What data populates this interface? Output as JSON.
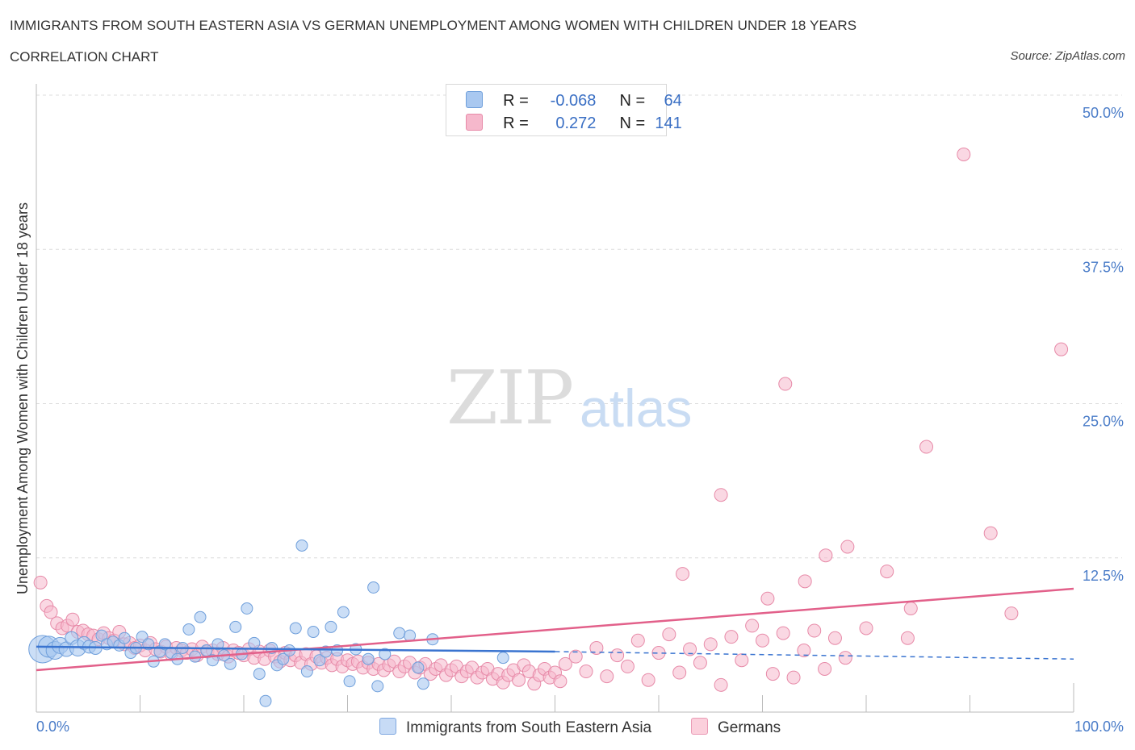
{
  "title": "IMMIGRANTS FROM SOUTH EASTERN ASIA VS GERMAN UNEMPLOYMENT AMONG WOMEN WITH CHILDREN UNDER 18 YEARS",
  "subtitle": "CORRELATION CHART",
  "source": "Source: ZipAtlas.com",
  "watermark": {
    "zip": "ZIP",
    "atlas": "atlas"
  },
  "legend": {
    "rows": [
      {
        "r_label": "R =",
        "r_value": "-0.068",
        "n_label": "N =",
        "n_value": "64",
        "color": "#a9c8f0"
      },
      {
        "r_label": "R =",
        "r_value": " 0.272",
        "n_label": "N =",
        "n_value": "141",
        "color": "#f6b8cc"
      }
    ]
  },
  "bottom_legend": [
    {
      "label": "Immigrants from South Eastern Asia",
      "color": "#a9c8f0"
    },
    {
      "label": "Germans",
      "color": "#f6b8cc"
    }
  ],
  "colors": {
    "blue_fill": "#a9c8f0",
    "blue_stroke": "#6f9fdb",
    "blue_line": "#3a74d0",
    "pink_fill": "#f6b8cc",
    "pink_stroke": "#e78aa8",
    "pink_line": "#e2608a",
    "tick_label": "#4a7cc8",
    "grid": "#dcdcdc"
  },
  "chart_data": {
    "type": "scatter",
    "title": "IMMIGRANTS FROM SOUTH EASTERN ASIA VS GERMAN UNEMPLOYMENT AMONG WOMEN WITH CHILDREN UNDER 18 YEARS",
    "xlabel": "",
    "ylabel": "Unemployment Among Women with Children Under 18 years",
    "xlim": [
      0,
      100
    ],
    "ylim": [
      0,
      50
    ],
    "x_tick_labels": [
      "0.0%",
      "100.0%"
    ],
    "y_ticks": [
      12.5,
      25.0,
      37.5,
      50.0
    ],
    "y_tick_labels": [
      "12.5%",
      "25.0%",
      "37.5%",
      "50.0%"
    ],
    "grid": "horizontal dashed",
    "legend_position": "top-center",
    "series": [
      {
        "name": "Immigrants from South Eastern Asia",
        "trend": {
          "x": [
            0,
            50,
            100
          ],
          "y": [
            5.3,
            4.9,
            4.3
          ],
          "solid_until": 50
        },
        "points": [
          [
            0.6,
            5.1,
            16
          ],
          [
            1.2,
            5.3,
            12
          ],
          [
            1.8,
            5.0,
            10
          ],
          [
            2.3,
            5.4,
            9
          ],
          [
            2.9,
            5.1,
            8
          ],
          [
            3.4,
            6.0,
            7
          ],
          [
            4.0,
            5.2,
            9
          ],
          [
            4.6,
            5.6,
            7
          ],
          [
            5.1,
            5.3,
            7
          ],
          [
            5.7,
            5.2,
            7
          ],
          [
            6.3,
            6.2,
            6
          ],
          [
            6.8,
            5.5,
            6
          ],
          [
            7.4,
            5.7,
            6
          ],
          [
            8.0,
            5.4,
            6
          ],
          [
            8.5,
            6.0,
            6
          ],
          [
            9.1,
            4.8,
            6
          ],
          [
            9.6,
            5.2,
            6
          ],
          [
            10.2,
            6.1,
            6
          ],
          [
            10.8,
            5.5,
            6
          ],
          [
            11.3,
            4.1,
            6
          ],
          [
            11.9,
            4.9,
            6
          ],
          [
            12.4,
            5.5,
            6
          ],
          [
            13.0,
            4.8,
            6
          ],
          [
            13.6,
            4.3,
            6
          ],
          [
            14.1,
            5.2,
            6
          ],
          [
            14.7,
            6.7,
            6
          ],
          [
            15.3,
            4.5,
            6
          ],
          [
            15.8,
            7.7,
            6
          ],
          [
            16.4,
            5.0,
            6
          ],
          [
            17.0,
            4.2,
            6
          ],
          [
            17.5,
            5.5,
            6
          ],
          [
            18.1,
            4.6,
            6
          ],
          [
            18.7,
            3.9,
            6
          ],
          [
            19.2,
            6.9,
            6
          ],
          [
            19.8,
            4.7,
            6
          ],
          [
            20.3,
            8.4,
            6
          ],
          [
            21.0,
            5.6,
            6
          ],
          [
            21.5,
            3.1,
            6
          ],
          [
            22.1,
            0.9,
            6
          ],
          [
            22.7,
            5.2,
            6
          ],
          [
            23.2,
            3.8,
            6
          ],
          [
            23.8,
            4.3,
            6
          ],
          [
            24.4,
            5.0,
            6
          ],
          [
            25.0,
            6.8,
            6
          ],
          [
            25.6,
            13.5,
            6
          ],
          [
            26.1,
            3.3,
            6
          ],
          [
            26.7,
            6.5,
            6
          ],
          [
            27.3,
            4.2,
            6
          ],
          [
            27.9,
            4.9,
            6
          ],
          [
            28.4,
            6.9,
            6
          ],
          [
            29.0,
            5.0,
            6
          ],
          [
            29.6,
            8.1,
            6
          ],
          [
            30.2,
            2.5,
            6
          ],
          [
            30.8,
            5.1,
            6
          ],
          [
            32.0,
            4.3,
            6
          ],
          [
            32.5,
            10.1,
            6
          ],
          [
            32.9,
            2.1,
            6
          ],
          [
            33.6,
            4.7,
            6
          ],
          [
            35.0,
            6.4,
            6
          ],
          [
            36.0,
            6.2,
            6
          ],
          [
            36.8,
            3.6,
            6
          ],
          [
            37.3,
            2.3,
            6
          ],
          [
            38.2,
            5.9,
            6
          ],
          [
            45.0,
            4.4,
            6
          ]
        ]
      },
      {
        "name": "Germans",
        "trend": {
          "x": [
            0,
            100
          ],
          "y": [
            3.4,
            10.0
          ]
        },
        "points": [
          [
            0.4,
            10.5,
            7
          ],
          [
            1.0,
            8.6,
            7
          ],
          [
            1.4,
            8.1,
            7
          ],
          [
            2.0,
            7.2,
            7
          ],
          [
            2.5,
            6.8,
            7
          ],
          [
            3.0,
            7.0,
            7
          ],
          [
            3.5,
            7.5,
            7
          ],
          [
            4.0,
            6.5,
            7
          ],
          [
            4.5,
            6.6,
            7
          ],
          [
            5.0,
            6.3,
            7
          ],
          [
            5.5,
            6.2,
            7
          ],
          [
            6.0,
            5.9,
            7
          ],
          [
            6.5,
            6.4,
            7
          ],
          [
            7.0,
            6.0,
            7
          ],
          [
            7.5,
            5.8,
            7
          ],
          [
            8.0,
            6.5,
            7
          ],
          [
            8.5,
            5.5,
            7
          ],
          [
            9.0,
            5.6,
            7
          ],
          [
            9.5,
            5.2,
            7
          ],
          [
            10.0,
            5.4,
            7
          ],
          [
            10.5,
            5.0,
            7
          ],
          [
            11.0,
            5.6,
            7
          ],
          [
            11.5,
            5.1,
            7
          ],
          [
            12.0,
            4.9,
            7
          ],
          [
            12.5,
            5.3,
            7
          ],
          [
            13.0,
            4.7,
            7
          ],
          [
            13.5,
            5.2,
            7
          ],
          [
            14.0,
            5.0,
            7
          ],
          [
            14.5,
            4.8,
            7
          ],
          [
            15.0,
            5.1,
            7
          ],
          [
            15.5,
            4.6,
            7
          ],
          [
            16.0,
            5.3,
            7
          ],
          [
            16.5,
            4.9,
            7
          ],
          [
            17.0,
            5.0,
            7
          ],
          [
            17.5,
            4.7,
            7
          ],
          [
            18.0,
            5.2,
            7
          ],
          [
            18.5,
            4.5,
            7
          ],
          [
            19.0,
            5.0,
            7
          ],
          [
            19.5,
            4.8,
            7
          ],
          [
            20.0,
            4.6,
            7
          ],
          [
            20.5,
            5.1,
            7
          ],
          [
            21.0,
            4.4,
            7
          ],
          [
            21.5,
            4.9,
            7
          ],
          [
            22.0,
            4.3,
            7
          ],
          [
            22.5,
            5.0,
            7
          ],
          [
            23.0,
            4.5,
            7
          ],
          [
            23.5,
            4.1,
            7
          ],
          [
            24.0,
            4.8,
            7
          ],
          [
            24.5,
            4.2,
            7
          ],
          [
            25.0,
            4.6,
            7
          ],
          [
            25.5,
            4.0,
            7
          ],
          [
            26.0,
            4.7,
            7
          ],
          [
            26.5,
            3.9,
            7
          ],
          [
            27.0,
            4.5,
            7
          ],
          [
            27.5,
            4.0,
            7
          ],
          [
            28.0,
            4.4,
            7
          ],
          [
            28.5,
            3.8,
            7
          ],
          [
            29.0,
            4.3,
            7
          ],
          [
            29.5,
            3.7,
            7
          ],
          [
            30.0,
            4.2,
            7
          ],
          [
            30.5,
            3.9,
            7
          ],
          [
            31.0,
            4.1,
            7
          ],
          [
            31.5,
            3.6,
            7
          ],
          [
            32.0,
            4.0,
            7
          ],
          [
            32.5,
            3.5,
            7
          ],
          [
            33.0,
            3.9,
            7
          ],
          [
            33.5,
            3.4,
            7
          ],
          [
            34.0,
            3.8,
            7
          ],
          [
            34.5,
            4.1,
            7
          ],
          [
            35.0,
            3.3,
            7
          ],
          [
            35.5,
            3.7,
            7
          ],
          [
            36.0,
            4.0,
            7
          ],
          [
            36.5,
            3.2,
            7
          ],
          [
            37.0,
            3.6,
            7
          ],
          [
            37.5,
            3.9,
            7
          ],
          [
            38.0,
            3.1,
            7
          ],
          [
            38.5,
            3.5,
            7
          ],
          [
            39.0,
            3.8,
            7
          ],
          [
            39.5,
            3.0,
            7
          ],
          [
            40.0,
            3.4,
            7
          ],
          [
            40.5,
            3.7,
            7
          ],
          [
            41.0,
            2.9,
            7
          ],
          [
            41.5,
            3.3,
            7
          ],
          [
            42.0,
            3.6,
            7
          ],
          [
            42.5,
            2.8,
            7
          ],
          [
            43.0,
            3.2,
            7
          ],
          [
            43.5,
            3.5,
            7
          ],
          [
            44.0,
            2.7,
            7
          ],
          [
            44.5,
            3.1,
            7
          ],
          [
            45.0,
            2.4,
            7
          ],
          [
            45.5,
            3.0,
            7
          ],
          [
            46.0,
            3.4,
            7
          ],
          [
            46.5,
            2.6,
            7
          ],
          [
            47.0,
            3.8,
            7
          ],
          [
            47.5,
            3.3,
            7
          ],
          [
            48.0,
            2.3,
            7
          ],
          [
            48.5,
            3.0,
            7
          ],
          [
            49.0,
            3.5,
            7
          ],
          [
            49.5,
            2.8,
            7
          ],
          [
            50.0,
            3.2,
            7
          ],
          [
            50.5,
            2.5,
            7
          ],
          [
            51.0,
            3.9,
            7
          ],
          [
            52.0,
            4.5,
            7
          ],
          [
            53.0,
            3.3,
            7
          ],
          [
            54.0,
            5.2,
            7
          ],
          [
            55.0,
            2.9,
            7
          ],
          [
            56.0,
            4.6,
            7
          ],
          [
            57.0,
            3.7,
            7
          ],
          [
            58.0,
            5.8,
            7
          ],
          [
            59.0,
            2.6,
            7
          ],
          [
            60.0,
            4.8,
            7
          ],
          [
            61.0,
            6.3,
            7
          ],
          [
            62.0,
            3.2,
            7
          ],
          [
            63.0,
            5.1,
            7
          ],
          [
            64.0,
            4.0,
            7
          ],
          [
            65.0,
            5.5,
            7
          ],
          [
            66.0,
            2.2,
            7
          ],
          [
            67.0,
            6.1,
            7
          ],
          [
            68.0,
            4.2,
            7
          ],
          [
            69.0,
            7.0,
            7
          ],
          [
            70.0,
            5.8,
            7
          ],
          [
            71.0,
            3.1,
            7
          ],
          [
            72.0,
            6.4,
            7
          ],
          [
            73.0,
            2.8,
            7
          ],
          [
            74.0,
            5.0,
            7
          ],
          [
            75.0,
            6.6,
            7
          ],
          [
            76.0,
            3.5,
            7
          ],
          [
            77.0,
            6.0,
            7
          ],
          [
            78.0,
            4.4,
            7
          ],
          [
            80.0,
            6.8,
            7
          ],
          [
            62.3,
            11.2,
            7
          ],
          [
            66.0,
            17.6,
            7
          ],
          [
            70.5,
            9.2,
            7
          ],
          [
            72.2,
            26.6,
            7
          ],
          [
            74.1,
            10.6,
            7
          ],
          [
            76.1,
            12.7,
            7
          ],
          [
            78.2,
            13.4,
            7
          ],
          [
            82.0,
            11.4,
            7
          ],
          [
            84.3,
            8.4,
            7
          ],
          [
            85.8,
            21.5,
            7
          ],
          [
            89.4,
            45.2,
            7
          ],
          [
            92.0,
            14.5,
            7
          ],
          [
            98.8,
            29.4,
            7
          ],
          [
            84.0,
            6.0,
            7
          ],
          [
            94.0,
            8.0,
            7
          ]
        ]
      }
    ]
  }
}
